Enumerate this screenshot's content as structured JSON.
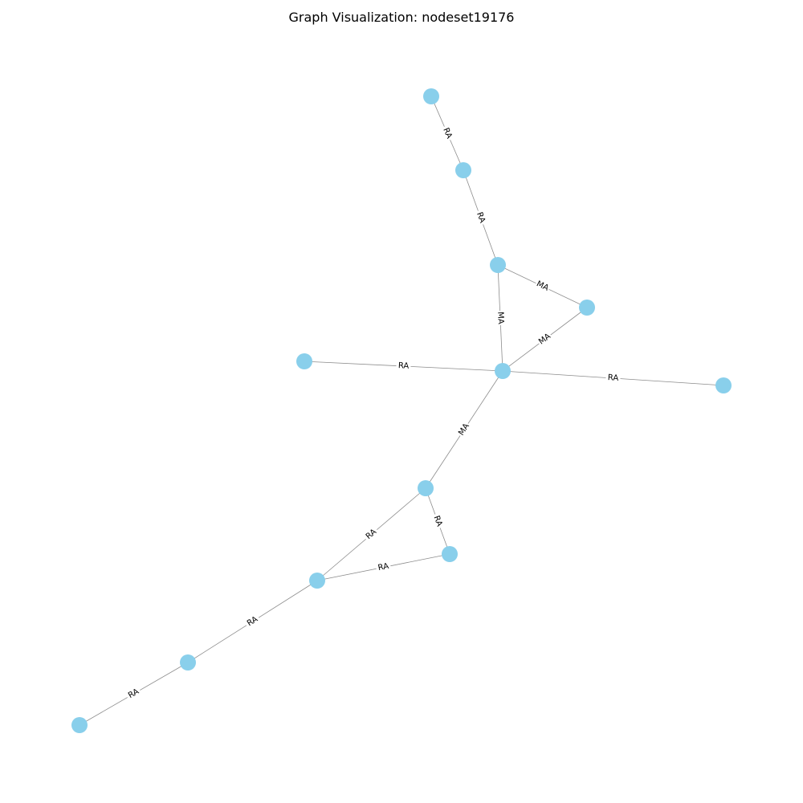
{
  "title": "Graph Visualization: nodeset19176",
  "colors": {
    "node_fill": "#89CFEB",
    "edge_stroke": "#8c8c8c",
    "label_text": "#000000"
  },
  "graph": {
    "nodes": [
      "n1",
      "n2",
      "n3",
      "n4",
      "n5",
      "n6",
      "n7",
      "n8",
      "n9",
      "n10",
      "n11",
      "n12"
    ],
    "edges": [
      {
        "source": "n1",
        "target": "n2",
        "label": "RA"
      },
      {
        "source": "n2",
        "target": "n3",
        "label": "RA"
      },
      {
        "source": "n3",
        "target": "n4",
        "label": "MA"
      },
      {
        "source": "n3",
        "target": "n5",
        "label": "MA"
      },
      {
        "source": "n4",
        "target": "n5",
        "label": "MA"
      },
      {
        "source": "n6",
        "target": "n5",
        "label": "RA"
      },
      {
        "source": "n5",
        "target": "n7",
        "label": "RA"
      },
      {
        "source": "n5",
        "target": "n8",
        "label": "MA"
      },
      {
        "source": "n8",
        "target": "n9",
        "label": "RA"
      },
      {
        "source": "n8",
        "target": "n10",
        "label": "RA"
      },
      {
        "source": "n10",
        "target": "n9",
        "label": "RA"
      },
      {
        "source": "n10",
        "target": "n11",
        "label": "RA"
      },
      {
        "source": "n11",
        "target": "n12",
        "label": "RA"
      }
    ]
  }
}
